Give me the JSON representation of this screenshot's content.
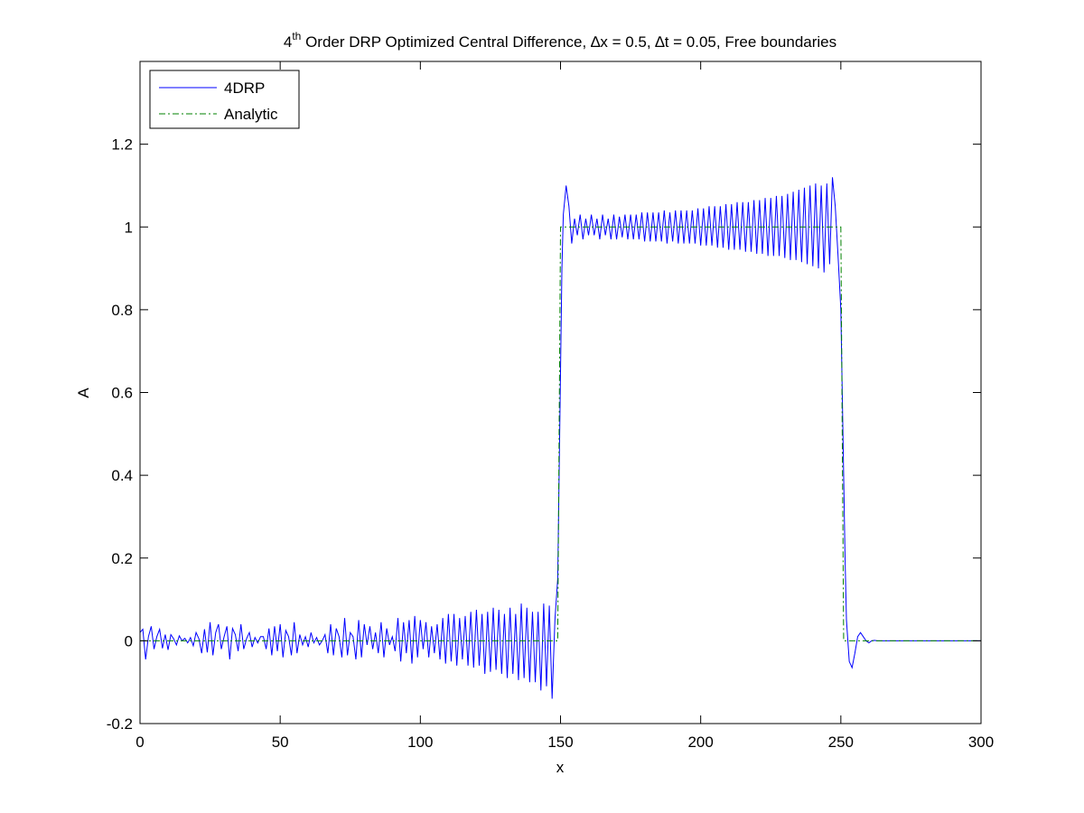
{
  "chart_data": {
    "type": "line",
    "title": {
      "prefix": "4",
      "superscript": "th",
      "rest": " Order DRP Optimized Central Difference, ∆x = 0.5, ∆t = 0.05, Free boundaries"
    },
    "xlabel": "x",
    "ylabel": "A",
    "xlim": [
      0,
      300
    ],
    "ylim": [
      -0.2,
      1.4
    ],
    "xticks": [
      0,
      50,
      100,
      150,
      200,
      250,
      300
    ],
    "xtick_labels": [
      "0",
      "50",
      "100",
      "150",
      "200",
      "250",
      "300"
    ],
    "yticks": [
      -0.2,
      0,
      0.2,
      0.4,
      0.6,
      0.8,
      1,
      1.2
    ],
    "ytick_labels": [
      "-0.2",
      "0",
      "0.2",
      "0.4",
      "0.6",
      "0.8",
      "1",
      "1.2"
    ],
    "grid": false,
    "legend_position": "top-left",
    "series": [
      {
        "name": "4DRP",
        "style": "solid",
        "color": "#0000ff",
        "points": [
          [
            0,
            0.02
          ],
          [
            1,
            0.028
          ],
          [
            2,
            -0.045
          ],
          [
            3,
            0.01
          ],
          [
            4,
            0.035
          ],
          [
            5,
            -0.02
          ],
          [
            6,
            0.01
          ],
          [
            7,
            0.028
          ],
          [
            8,
            -0.018
          ],
          [
            9,
            0.015
          ],
          [
            10,
            -0.022
          ],
          [
            11,
            0.015
          ],
          [
            12,
            0.005
          ],
          [
            13,
            -0.01
          ],
          [
            14,
            0.012
          ],
          [
            15,
            0.0
          ],
          [
            16,
            0.006
          ],
          [
            17,
            -0.005
          ],
          [
            18,
            0.008
          ],
          [
            19,
            -0.012
          ],
          [
            20,
            0.02
          ],
          [
            21,
            0.005
          ],
          [
            22,
            -0.03
          ],
          [
            23,
            0.028
          ],
          [
            24,
            -0.028
          ],
          [
            25,
            0.045
          ],
          [
            26,
            -0.035
          ],
          [
            27,
            0.02
          ],
          [
            28,
            0.04
          ],
          [
            29,
            -0.02
          ],
          [
            30,
            0.01
          ],
          [
            31,
            0.035
          ],
          [
            32,
            -0.045
          ],
          [
            33,
            0.03
          ],
          [
            34,
            0.015
          ],
          [
            35,
            -0.025
          ],
          [
            36,
            0.04
          ],
          [
            37,
            -0.02
          ],
          [
            38,
            0.005
          ],
          [
            39,
            0.02
          ],
          [
            40,
            -0.015
          ],
          [
            41,
            0.008
          ],
          [
            42,
            -0.005
          ],
          [
            43,
            0.01
          ],
          [
            44,
            0.01
          ],
          [
            45,
            -0.02
          ],
          [
            46,
            0.03
          ],
          [
            47,
            -0.035
          ],
          [
            48,
            0.035
          ],
          [
            49,
            -0.025
          ],
          [
            50,
            0.04
          ],
          [
            51,
            -0.04
          ],
          [
            52,
            0.025
          ],
          [
            53,
            0.01
          ],
          [
            54,
            -0.035
          ],
          [
            55,
            0.045
          ],
          [
            56,
            -0.03
          ],
          [
            57,
            0.015
          ],
          [
            58,
            -0.01
          ],
          [
            59,
            0.01
          ],
          [
            60,
            -0.015
          ],
          [
            61,
            0.02
          ],
          [
            62,
            -0.005
          ],
          [
            63,
            0.008
          ],
          [
            64,
            -0.01
          ],
          [
            65,
            0.0
          ],
          [
            66,
            0.015
          ],
          [
            67,
            -0.03
          ],
          [
            68,
            0.04
          ],
          [
            69,
            -0.035
          ],
          [
            70,
            0.03
          ],
          [
            71,
            0.01
          ],
          [
            72,
            -0.04
          ],
          [
            73,
            0.055
          ],
          [
            74,
            -0.035
          ],
          [
            75,
            0.02
          ],
          [
            76,
            0.01
          ],
          [
            77,
            -0.045
          ],
          [
            78,
            0.05
          ],
          [
            79,
            -0.04
          ],
          [
            80,
            0.04
          ],
          [
            81,
            -0.01
          ],
          [
            82,
            0.035
          ],
          [
            83,
            -0.02
          ],
          [
            84,
            0.02
          ],
          [
            85,
            -0.03
          ],
          [
            86,
            0.045
          ],
          [
            87,
            -0.04
          ],
          [
            88,
            0.03
          ],
          [
            89,
            -0.01
          ],
          [
            90,
            0.01
          ],
          [
            91,
            -0.025
          ],
          [
            92,
            0.055
          ],
          [
            93,
            -0.05
          ],
          [
            94,
            0.045
          ],
          [
            95,
            -0.03
          ],
          [
            96,
            0.05
          ],
          [
            97,
            -0.055
          ],
          [
            98,
            0.06
          ],
          [
            99,
            -0.04
          ],
          [
            100,
            0.05
          ],
          [
            101,
            -0.02
          ],
          [
            102,
            0.045
          ],
          [
            103,
            -0.04
          ],
          [
            104,
            0.035
          ],
          [
            105,
            -0.03
          ],
          [
            106,
            0.04
          ],
          [
            107,
            -0.045
          ],
          [
            108,
            0.055
          ],
          [
            109,
            -0.055
          ],
          [
            110,
            0.065
          ],
          [
            111,
            -0.05
          ],
          [
            112,
            0.065
          ],
          [
            113,
            -0.06
          ],
          [
            114,
            0.055
          ],
          [
            115,
            -0.045
          ],
          [
            116,
            0.06
          ],
          [
            117,
            -0.06
          ],
          [
            118,
            0.07
          ],
          [
            119,
            -0.065
          ],
          [
            120,
            0.075
          ],
          [
            121,
            -0.06
          ],
          [
            122,
            0.065
          ],
          [
            123,
            -0.08
          ],
          [
            124,
            0.07
          ],
          [
            125,
            -0.075
          ],
          [
            126,
            0.08
          ],
          [
            127,
            -0.07
          ],
          [
            128,
            0.075
          ],
          [
            129,
            -0.08
          ],
          [
            130,
            0.065
          ],
          [
            131,
            -0.09
          ],
          [
            132,
            0.08
          ],
          [
            133,
            -0.08
          ],
          [
            134,
            0.065
          ],
          [
            135,
            -0.095
          ],
          [
            136,
            0.09
          ],
          [
            137,
            -0.09
          ],
          [
            138,
            0.08
          ],
          [
            139,
            -0.1
          ],
          [
            140,
            0.07
          ],
          [
            141,
            -0.1
          ],
          [
            142,
            0.07
          ],
          [
            143,
            -0.12
          ],
          [
            144,
            0.09
          ],
          [
            145,
            -0.11
          ],
          [
            146,
            0.085
          ],
          [
            147,
            -0.14
          ],
          [
            148,
            0.05
          ],
          [
            149,
            0.15
          ],
          [
            149.5,
            0.4
          ],
          [
            150,
            0.65
          ],
          [
            150.5,
            0.9
          ],
          [
            151,
            1.03
          ],
          [
            152,
            1.1
          ],
          [
            153,
            1.05
          ],
          [
            154,
            0.96
          ],
          [
            155,
            1.02
          ],
          [
            156,
            0.98
          ],
          [
            157,
            1.03
          ],
          [
            158,
            0.97
          ],
          [
            159,
            1.02
          ],
          [
            160,
            0.98
          ],
          [
            161,
            1.03
          ],
          [
            162,
            0.98
          ],
          [
            163,
            1.02
          ],
          [
            164,
            0.97
          ],
          [
            165,
            1.03
          ],
          [
            166,
            0.98
          ],
          [
            167,
            1.02
          ],
          [
            168,
            0.97
          ],
          [
            169,
            1.03
          ],
          [
            170,
            0.97
          ],
          [
            171,
            1.025
          ],
          [
            172,
            0.975
          ],
          [
            173,
            1.03
          ],
          [
            174,
            0.97
          ],
          [
            175,
            1.03
          ],
          [
            176,
            0.97
          ],
          [
            177,
            1.03
          ],
          [
            178,
            0.97
          ],
          [
            179,
            1.035
          ],
          [
            180,
            0.965
          ],
          [
            181,
            1.035
          ],
          [
            182,
            0.965
          ],
          [
            183,
            1.035
          ],
          [
            184,
            0.965
          ],
          [
            185,
            1.035
          ],
          [
            186,
            0.965
          ],
          [
            187,
            1.04
          ],
          [
            188,
            0.96
          ],
          [
            189,
            1.035
          ],
          [
            190,
            0.965
          ],
          [
            191,
            1.04
          ],
          [
            192,
            0.96
          ],
          [
            193,
            1.04
          ],
          [
            194,
            0.96
          ],
          [
            195,
            1.04
          ],
          [
            196,
            0.96
          ],
          [
            197,
            1.04
          ],
          [
            198,
            0.96
          ],
          [
            199,
            1.045
          ],
          [
            200,
            0.955
          ],
          [
            201,
            1.045
          ],
          [
            202,
            0.955
          ],
          [
            203,
            1.05
          ],
          [
            204,
            0.955
          ],
          [
            205,
            1.05
          ],
          [
            206,
            0.95
          ],
          [
            207,
            1.05
          ],
          [
            208,
            0.95
          ],
          [
            209,
            1.055
          ],
          [
            210,
            0.945
          ],
          [
            211,
            1.055
          ],
          [
            212,
            0.945
          ],
          [
            213,
            1.06
          ],
          [
            214,
            0.945
          ],
          [
            215,
            1.06
          ],
          [
            216,
            0.94
          ],
          [
            217,
            1.06
          ],
          [
            218,
            0.94
          ],
          [
            219,
            1.065
          ],
          [
            220,
            0.935
          ],
          [
            221,
            1.065
          ],
          [
            222,
            0.935
          ],
          [
            223,
            1.07
          ],
          [
            224,
            0.93
          ],
          [
            225,
            1.07
          ],
          [
            226,
            0.93
          ],
          [
            227,
            1.075
          ],
          [
            228,
            0.93
          ],
          [
            229,
            1.075
          ],
          [
            230,
            0.925
          ],
          [
            231,
            1.08
          ],
          [
            232,
            0.92
          ],
          [
            233,
            1.085
          ],
          [
            234,
            0.92
          ],
          [
            235,
            1.09
          ],
          [
            236,
            0.915
          ],
          [
            237,
            1.095
          ],
          [
            238,
            0.91
          ],
          [
            239,
            1.1
          ],
          [
            240,
            0.905
          ],
          [
            241,
            1.105
          ],
          [
            242,
            0.9
          ],
          [
            243,
            1.1
          ],
          [
            244,
            0.89
          ],
          [
            245,
            1.105
          ],
          [
            246,
            0.91
          ],
          [
            247,
            1.12
          ],
          [
            248,
            1.05
          ],
          [
            249,
            0.93
          ],
          [
            250,
            0.8
          ],
          [
            250.5,
            0.6
          ],
          [
            251,
            0.4
          ],
          [
            251.5,
            0.2
          ],
          [
            252,
            0.05
          ],
          [
            253,
            -0.05
          ],
          [
            254,
            -0.065
          ],
          [
            255,
            -0.03
          ],
          [
            256,
            0.01
          ],
          [
            257,
            0.02
          ],
          [
            258,
            0.01
          ],
          [
            259,
            0.0
          ],
          [
            260,
            -0.005
          ],
          [
            261,
            0.0
          ],
          [
            262,
            0.001
          ],
          [
            263,
            0.0
          ],
          [
            270,
            0.0
          ],
          [
            280,
            0.0
          ],
          [
            290,
            0.0
          ],
          [
            300,
            0.0
          ]
        ]
      },
      {
        "name": "Analytic",
        "style": "dashdot",
        "color": "#008000",
        "points": [
          [
            0,
            0
          ],
          [
            149,
            0
          ],
          [
            150,
            1
          ],
          [
            250,
            1
          ],
          [
            251,
            0
          ],
          [
            300,
            0
          ]
        ]
      }
    ]
  }
}
